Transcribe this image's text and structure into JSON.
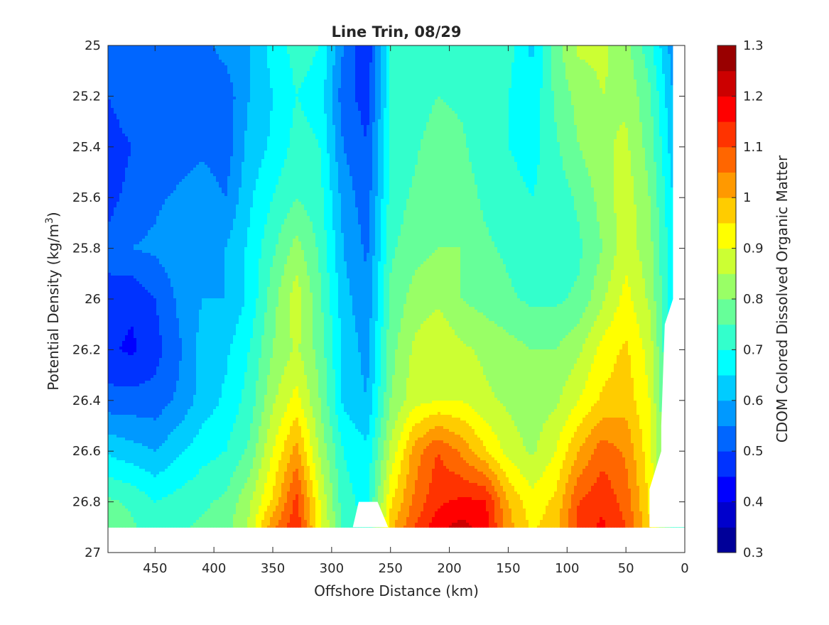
{
  "chart_data": {
    "type": "heatmap",
    "subtype": "filled-contour",
    "title": "Line Trin, 08/29",
    "xlabel": "Offshore Distance (km)",
    "ylabel_main": "Potential Density (kg/m",
    "ylabel_sup": "3",
    "ylabel_end": ")",
    "colorbar_label": "CDOM Colored Dissolved Organic Matter",
    "x_range": [
      490,
      0
    ],
    "x_reversed": true,
    "y_range": [
      25,
      27
    ],
    "y_reversed": true,
    "color_range": [
      0.3,
      1.3
    ],
    "contour_step": 0.05,
    "colormap": "jet",
    "x_ticks": [
      "450",
      "400",
      "350",
      "300",
      "250",
      "200",
      "150",
      "100",
      "50",
      "0"
    ],
    "x_tick_values": [
      450,
      400,
      350,
      300,
      250,
      200,
      150,
      100,
      50,
      0
    ],
    "y_ticks": [
      "25",
      "25.2",
      "25.4",
      "25.6",
      "25.8",
      "26",
      "26.2",
      "26.4",
      "26.6",
      "26.8",
      "27"
    ],
    "y_tick_values": [
      25,
      25.2,
      25.4,
      25.6,
      25.8,
      26,
      26.2,
      26.4,
      26.6,
      26.8,
      27
    ],
    "c_ticks": [
      "0.3",
      "0.4",
      "0.5",
      "0.6",
      "0.7",
      "0.8",
      "0.9",
      "1",
      "1.1",
      "1.2",
      "1.3"
    ],
    "c_tick_values": [
      0.3,
      0.4,
      0.5,
      0.6,
      0.7,
      0.8,
      0.9,
      1.0,
      1.1,
      1.2,
      1.3
    ],
    "grid": false,
    "gx": [
      490,
      470,
      450,
      430,
      410,
      390,
      370,
      350,
      330,
      310,
      290,
      270,
      250,
      230,
      210,
      190,
      170,
      150,
      130,
      110,
      90,
      70,
      50,
      30,
      10
    ],
    "gy": [
      25.0,
      25.2,
      25.4,
      25.6,
      25.8,
      26.0,
      26.2,
      26.4,
      26.6,
      26.8,
      26.9
    ],
    "z": [
      [
        0.55,
        0.53,
        0.52,
        0.52,
        0.53,
        0.57,
        0.6,
        0.67,
        0.72,
        0.7,
        0.55,
        0.45,
        0.7,
        0.72,
        0.72,
        0.72,
        0.72,
        0.72,
        0.64,
        0.78,
        0.86,
        0.86,
        0.82,
        0.72,
        0.57
      ],
      [
        0.5,
        0.55,
        0.52,
        0.52,
        0.52,
        0.52,
        0.6,
        0.65,
        0.7,
        0.68,
        0.52,
        0.48,
        0.7,
        0.72,
        0.75,
        0.74,
        0.72,
        0.7,
        0.66,
        0.76,
        0.82,
        0.85,
        0.84,
        0.76,
        0.6
      ],
      [
        0.46,
        0.5,
        0.5,
        0.52,
        0.54,
        0.52,
        0.62,
        0.66,
        0.72,
        0.7,
        0.55,
        0.5,
        0.7,
        0.74,
        0.78,
        0.76,
        0.72,
        0.7,
        0.68,
        0.74,
        0.8,
        0.84,
        0.86,
        0.78,
        0.62
      ],
      [
        0.48,
        0.52,
        0.54,
        0.56,
        0.58,
        0.55,
        0.64,
        0.7,
        0.75,
        0.72,
        0.58,
        0.52,
        0.72,
        0.76,
        0.78,
        0.78,
        0.74,
        0.72,
        0.7,
        0.72,
        0.76,
        0.82,
        0.88,
        0.8,
        0.65
      ],
      [
        0.52,
        0.55,
        0.56,
        0.58,
        0.58,
        0.6,
        0.66,
        0.74,
        0.82,
        0.74,
        0.6,
        0.54,
        0.74,
        0.78,
        0.8,
        0.8,
        0.76,
        0.74,
        0.7,
        0.72,
        0.74,
        0.8,
        0.88,
        0.82,
        0.66
      ],
      [
        0.48,
        0.46,
        0.5,
        0.56,
        0.6,
        0.6,
        0.66,
        0.78,
        0.88,
        0.76,
        0.62,
        0.56,
        0.76,
        0.82,
        0.84,
        0.8,
        0.78,
        0.76,
        0.74,
        0.74,
        0.76,
        0.84,
        0.92,
        0.84,
        0.66
      ],
      [
        0.46,
        0.44,
        0.48,
        0.54,
        0.62,
        0.64,
        0.7,
        0.8,
        0.86,
        0.78,
        0.64,
        0.58,
        0.78,
        0.86,
        0.9,
        0.86,
        0.84,
        0.82,
        0.8,
        0.8,
        0.84,
        0.92,
        0.96,
        0.88,
        0.66
      ],
      [
        0.52,
        0.52,
        0.52,
        0.56,
        0.62,
        0.66,
        0.72,
        0.84,
        0.92,
        0.8,
        0.64,
        0.6,
        0.8,
        0.88,
        0.9,
        0.9,
        0.86,
        0.84,
        0.82,
        0.84,
        0.9,
        0.96,
        0.98,
        0.9,
        0.68
      ],
      [
        0.64,
        0.62,
        0.6,
        0.64,
        0.68,
        0.7,
        0.76,
        0.9,
        1.02,
        0.84,
        0.7,
        0.66,
        0.86,
        1.02,
        1.1,
        1.04,
        0.96,
        0.88,
        0.84,
        0.9,
        1.0,
        1.08,
        1.04,
        0.92,
        0.7
      ],
      [
        0.76,
        0.74,
        0.7,
        0.72,
        0.74,
        0.76,
        0.84,
        0.96,
        1.12,
        0.9,
        0.72,
        0.68,
        0.94,
        1.06,
        1.14,
        1.16,
        1.16,
        1.0,
        0.92,
        0.96,
        1.1,
        1.14,
        1.08,
        0.94,
        0.72
      ],
      [
        0.78,
        0.76,
        0.72,
        0.74,
        0.76,
        0.78,
        0.86,
        1.04,
        1.14,
        0.92,
        0.74,
        0.7,
        0.98,
        1.1,
        1.18,
        1.22,
        1.18,
        1.02,
        0.94,
        0.98,
        1.12,
        1.16,
        1.1,
        0.96,
        0.72
      ]
    ]
  }
}
